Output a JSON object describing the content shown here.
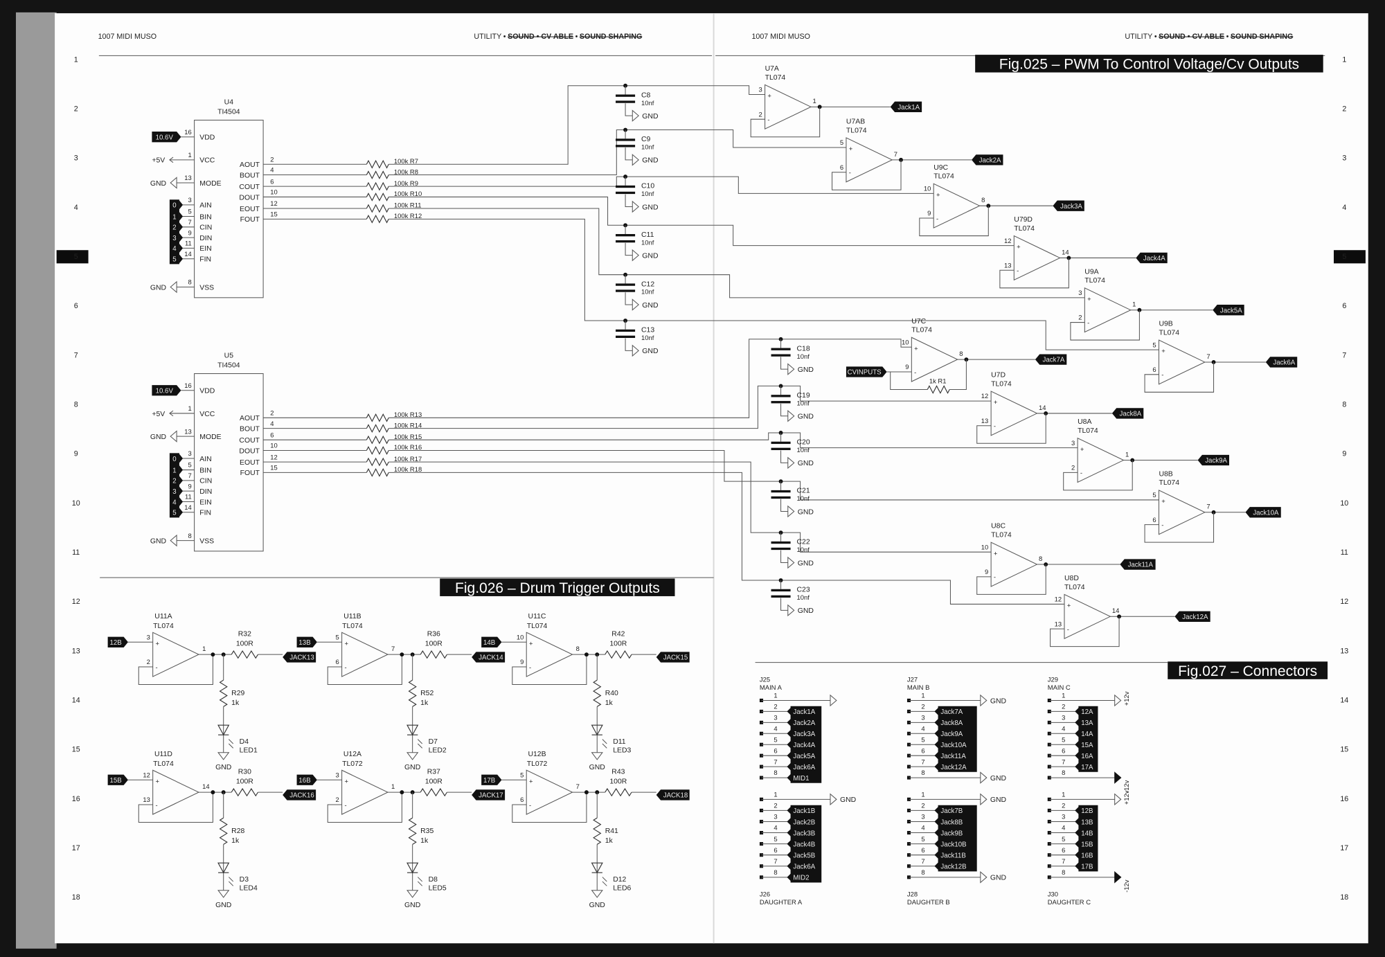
{
  "header": {
    "book_title": "1007 MIDI MUSO",
    "section_active": "UTILITY",
    "separator": "•",
    "section_struck_1": "SOUND • CV ABLE",
    "section_struck_2": "SOUND SHAPING"
  },
  "row_numbers": [
    "1",
    "2",
    "3",
    "4",
    "5",
    "6",
    "7",
    "8",
    "9",
    "10",
    "11",
    "12",
    "13",
    "14",
    "15",
    "16",
    "17",
    "18"
  ],
  "active_row": "5",
  "colors": {
    "ink": "#222222",
    "tag_fill": "#111111",
    "paper": "#ffffff",
    "wire": "#555555"
  },
  "fig025": {
    "title": "Fig.025 – PWM To Control Voltage/Cv Outputs",
    "ics": [
      {
        "ref": "U4",
        "part": "TI4504",
        "vdd_tag": "10.6V",
        "vcc_net": "+5V",
        "mode_net": "GND",
        "vss_net": "GND",
        "left_pins": [
          {
            "num": "16",
            "name": "VDD"
          },
          {
            "num": "1",
            "name": "VCC"
          },
          {
            "num": "13",
            "name": "MODE"
          },
          {
            "num": "3",
            "name": "AIN"
          },
          {
            "num": "5",
            "name": "BIN"
          },
          {
            "num": "7",
            "name": "CIN"
          },
          {
            "num": "9",
            "name": "DIN"
          },
          {
            "num": "11",
            "name": "EIN"
          },
          {
            "num": "14",
            "name": "FIN"
          },
          {
            "num": "8",
            "name": "VSS"
          }
        ],
        "input_tags": [
          "0",
          "1",
          "2",
          "3",
          "4",
          "5"
        ],
        "right_pins": [
          {
            "num": "2",
            "name": "AOUT"
          },
          {
            "num": "4",
            "name": "BOUT"
          },
          {
            "num": "6",
            "name": "COUT"
          },
          {
            "num": "10",
            "name": "DOUT"
          },
          {
            "num": "12",
            "name": "EOUT"
          },
          {
            "num": "15",
            "name": "FOUT"
          }
        ],
        "resistors": [
          "100k R7",
          "100k R8",
          "100k R9",
          "100k R10",
          "100k R11",
          "100k R12"
        ]
      },
      {
        "ref": "U5",
        "part": "TI4504",
        "vdd_tag": "10.6V",
        "vcc_net": "+5V",
        "mode_net": "GND",
        "vss_net": "GND",
        "left_pins": [
          {
            "num": "16",
            "name": "VDD"
          },
          {
            "num": "1",
            "name": "VCC"
          },
          {
            "num": "13",
            "name": "MODE"
          },
          {
            "num": "3",
            "name": "AIN"
          },
          {
            "num": "5",
            "name": "BIN"
          },
          {
            "num": "7",
            "name": "CIN"
          },
          {
            "num": "9",
            "name": "DIN"
          },
          {
            "num": "11",
            "name": "EIN"
          },
          {
            "num": "14",
            "name": "FIN"
          },
          {
            "num": "8",
            "name": "VSS"
          }
        ],
        "input_tags": [
          "0",
          "1",
          "2",
          "3",
          "4",
          "5"
        ],
        "right_pins": [
          {
            "num": "2",
            "name": "AOUT"
          },
          {
            "num": "4",
            "name": "BOUT"
          },
          {
            "num": "6",
            "name": "COUT"
          },
          {
            "num": "10",
            "name": "DOUT"
          },
          {
            "num": "12",
            "name": "EOUT"
          },
          {
            "num": "15",
            "name": "FOUT"
          }
        ],
        "resistors": [
          "100k R13",
          "100k R14",
          "100k R15",
          "100k R16",
          "100k R17",
          "100k R18"
        ]
      }
    ],
    "capacitors": [
      {
        "ref": "C8",
        "value": "10nf",
        "net": "GND"
      },
      {
        "ref": "C9",
        "value": "10nf",
        "net": "GND"
      },
      {
        "ref": "C10",
        "value": "10nf",
        "net": "GND"
      },
      {
        "ref": "C11",
        "value": "10nf",
        "net": "GND"
      },
      {
        "ref": "C12",
        "value": "10nf",
        "net": "GND"
      },
      {
        "ref": "C13",
        "value": "10nf",
        "net": "GND"
      },
      {
        "ref": "C18",
        "value": "10nf",
        "net": "GND"
      },
      {
        "ref": "C19",
        "value": "10nf",
        "net": "GND"
      },
      {
        "ref": "C20",
        "value": "10nf",
        "net": "GND"
      },
      {
        "ref": "C21",
        "value": "10nf",
        "net": "GND"
      },
      {
        "ref": "C22",
        "value": "10nf",
        "net": "GND"
      },
      {
        "ref": "C23",
        "value": "10nf",
        "net": "GND"
      }
    ],
    "opamps": [
      {
        "ref": "U7A",
        "part": "TL074",
        "pins": [
          "3",
          "2",
          "1"
        ],
        "output": "Jack1A"
      },
      {
        "ref": "U7AB",
        "part": "TL074",
        "pins": [
          "5",
          "6",
          "7"
        ],
        "output": "Jack2A"
      },
      {
        "ref": "U9C",
        "part": "TL074",
        "pins": [
          "10",
          "9",
          "8"
        ],
        "output": "Jack3A"
      },
      {
        "ref": "U79D",
        "part": "TL074",
        "pins": [
          "12",
          "13",
          "14"
        ],
        "output": "Jack4A"
      },
      {
        "ref": "U9A",
        "part": "TL074",
        "pins": [
          "3",
          "2",
          "1"
        ],
        "output": "Jack5A"
      },
      {
        "ref": "U9B",
        "part": "TL074",
        "pins": [
          "5",
          "6",
          "7"
        ],
        "output": "Jack6A"
      },
      {
        "ref": "U7C",
        "part": "TL074",
        "pins": [
          "10",
          "9",
          "8"
        ],
        "output": "Jack7A"
      },
      {
        "ref": "U7D",
        "part": "TL074",
        "pins": [
          "12",
          "13",
          "14"
        ],
        "output": "Jack8A"
      },
      {
        "ref": "U8A",
        "part": "TL074",
        "pins": [
          "3",
          "2",
          "1"
        ],
        "output": "Jack9A"
      },
      {
        "ref": "U8B",
        "part": "TL074",
        "pins": [
          "5",
          "6",
          "7"
        ],
        "output": "Jack10A"
      },
      {
        "ref": "U8C",
        "part": "TL074",
        "pins": [
          "10",
          "9",
          "8"
        ],
        "output": "Jack11A"
      },
      {
        "ref": "U8D",
        "part": "TL074",
        "pins": [
          "12",
          "13",
          "14"
        ],
        "output": "Jack12A"
      }
    ],
    "feedback_resistor": "1k R1",
    "cv_input_tag": "CVINPUTS"
  },
  "fig026": {
    "title": "Fig.026 – Drum Trigger Outputs",
    "channels": [
      {
        "opamp": "U11A",
        "part": "TL074",
        "pins": [
          "3",
          "2",
          "1"
        ],
        "input": "12B",
        "series_ref": "R32",
        "series_value": "100R",
        "output": "JACK13",
        "pulldown_ref": "R29",
        "pulldown_value": "1k",
        "led_ref": "D4",
        "led_name": "LED1",
        "gnd": "GND"
      },
      {
        "opamp": "U11B",
        "part": "TL074",
        "pins": [
          "5",
          "6",
          "7"
        ],
        "input": "13B",
        "series_ref": "R36",
        "series_value": "100R",
        "output": "JACK14",
        "pulldown_ref": "R52",
        "pulldown_value": "1k",
        "led_ref": "D7",
        "led_name": "LED2",
        "gnd": "GND"
      },
      {
        "opamp": "U11C",
        "part": "TL074",
        "pins": [
          "10",
          "9",
          "8"
        ],
        "input": "14B",
        "series_ref": "R42",
        "series_value": "100R",
        "output": "JACK15",
        "pulldown_ref": "R40",
        "pulldown_value": "1k",
        "led_ref": "D11",
        "led_name": "LED3",
        "gnd": "GND"
      },
      {
        "opamp": "U11D",
        "part": "TL074",
        "pins": [
          "12",
          "13",
          "14"
        ],
        "input": "15B",
        "series_ref": "R30",
        "series_value": "100R",
        "output": "JACK16",
        "pulldown_ref": "R28",
        "pulldown_value": "1k",
        "led_ref": "D3",
        "led_name": "LED4",
        "gnd": "GND"
      },
      {
        "opamp": "U12A",
        "part": "TL072",
        "pins": [
          "3",
          "2",
          "1"
        ],
        "input": "16B",
        "series_ref": "R37",
        "series_value": "100R",
        "output": "JACK17",
        "pulldown_ref": "R35",
        "pulldown_value": "1k",
        "led_ref": "D8",
        "led_name": "LED5",
        "gnd": "GND"
      },
      {
        "opamp": "U12B",
        "part": "TL072",
        "pins": [
          "5",
          "6",
          "7"
        ],
        "input": "17B",
        "series_ref": "R43",
        "series_value": "100R",
        "output": "JACK18",
        "pulldown_ref": "R41",
        "pulldown_value": "1k",
        "led_ref": "D12",
        "led_name": "LED6",
        "gnd": "GND"
      }
    ]
  },
  "fig027": {
    "title": "Fig.027 – Connectors",
    "connectors": [
      {
        "ref": "J25",
        "name": "MAIN A",
        "pins": [
          "1",
          "2",
          "3",
          "4",
          "5",
          "6",
          "7",
          "8"
        ],
        "pin1_net": "",
        "signals": [
          "Jack1A",
          "Jack2A",
          "Jack3A",
          "Jack4A",
          "Jack5A",
          "Jack6A",
          "MID1"
        ],
        "pin8_net": null
      },
      {
        "ref": "J26",
        "name": "DAUGHTER A",
        "pins": [
          "1",
          "2",
          "3",
          "4",
          "5",
          "6",
          "7",
          "8"
        ],
        "pin1_net": "GND",
        "signals": [
          "Jack1B",
          "Jack2B",
          "Jack3B",
          "Jack4B",
          "Jack5B",
          "Jack6A",
          "MID2"
        ],
        "pin8_net": null
      },
      {
        "ref": "J27",
        "name": "MAIN B",
        "pins": [
          "1",
          "2",
          "3",
          "4",
          "5",
          "6",
          "7",
          "8"
        ],
        "pin1_net": "GND",
        "signals": [
          "Jack7A",
          "Jack8A",
          "Jack9A",
          "Jack10A",
          "Jack11A",
          "Jack12A"
        ],
        "pin8_net": "GND"
      },
      {
        "ref": "J28",
        "name": "DAUGHTER B",
        "pins": [
          "1",
          "2",
          "3",
          "4",
          "5",
          "6",
          "7",
          "8"
        ],
        "pin1_net": "GND",
        "signals": [
          "Jack7B",
          "Jack8B",
          "Jack9B",
          "Jack10B",
          "Jack11B",
          "Jack12B"
        ],
        "pin8_net": "GND"
      },
      {
        "ref": "J29",
        "name": "MAIN C",
        "pins": [
          "1",
          "2",
          "3",
          "4",
          "5",
          "6",
          "7",
          "8"
        ],
        "pin1_net": "+12v",
        "signals": [
          "12A",
          "13A",
          "14A",
          "15A",
          "16A",
          "17A"
        ],
        "pin8_net": "-12v"
      },
      {
        "ref": "J30",
        "name": "DAUGHTER C",
        "pins": [
          "1",
          "2",
          "3",
          "4",
          "5",
          "6",
          "7",
          "8"
        ],
        "pin1_net": "+12v",
        "signals": [
          "12B",
          "13B",
          "14B",
          "15B",
          "16B",
          "17B"
        ],
        "pin8_net": "-12v"
      }
    ]
  }
}
